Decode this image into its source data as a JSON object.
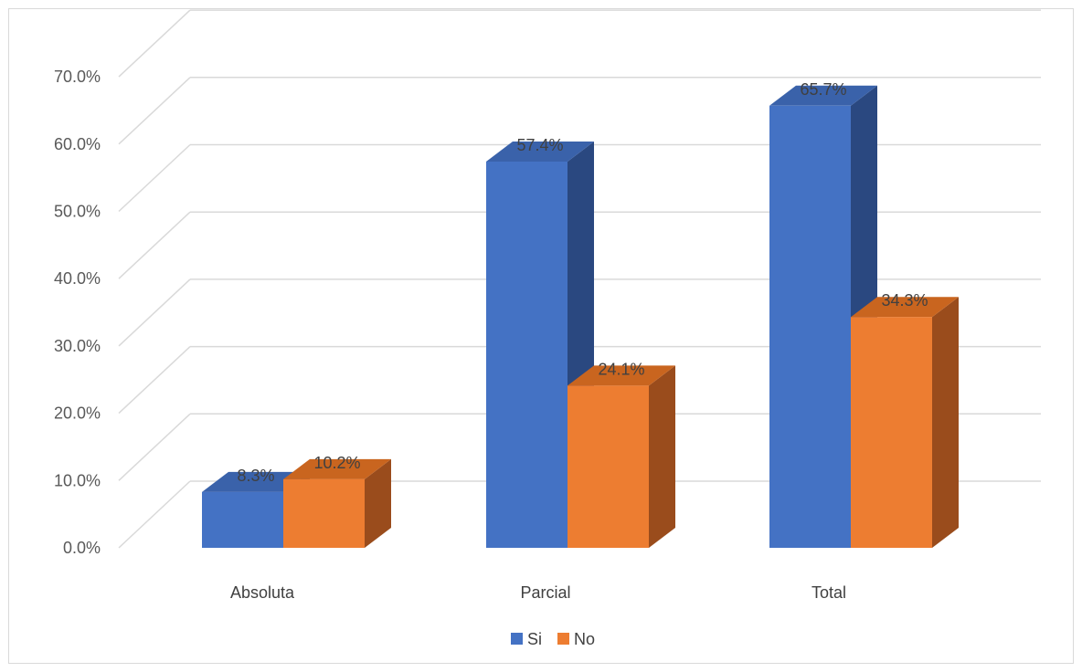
{
  "chart_data": {
    "type": "bar",
    "style": "3d-clustered-column",
    "categories": [
      "Absoluta",
      "Parcial",
      "Total"
    ],
    "series": [
      {
        "name": "Si",
        "values": [
          8.3,
          57.4,
          65.7
        ],
        "labels": [
          "8.3%",
          "57.4%",
          "65.7%"
        ],
        "color": "#4472C4",
        "side_color": "#2A4880",
        "top_color": "#3A62AA"
      },
      {
        "name": "No",
        "values": [
          10.2,
          24.1,
          34.3
        ],
        "labels": [
          "10.2%",
          "24.1%",
          "34.3%"
        ],
        "color": "#ED7D31",
        "side_color": "#9A4C1C",
        "top_color": "#C9651F"
      }
    ],
    "ylim": [
      0,
      70
    ],
    "yticks": [
      "0.0%",
      "10.0%",
      "20.0%",
      "30.0%",
      "40.0%",
      "50.0%",
      "60.0%",
      "70.0%"
    ],
    "grid": true,
    "legend_position": "bottom",
    "title": "",
    "xlabel": "",
    "ylabel": ""
  }
}
